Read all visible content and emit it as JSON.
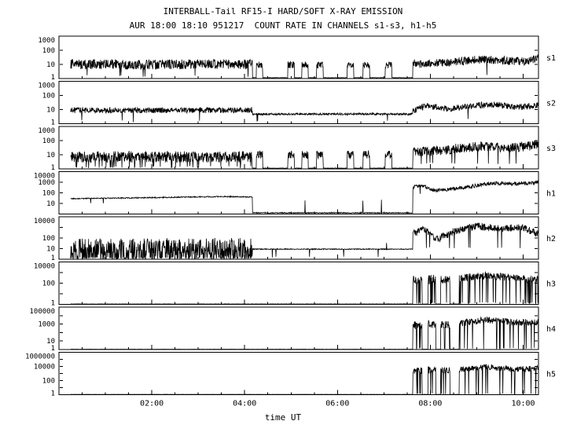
{
  "title": "INTERBALL-Tail RF15-I HARD/SOFT X-RAY EMISSION",
  "subtitle": "AUR 18:00 18:10 951217  COUNT RATE IN CHANNELS s1-s3, h1-h5",
  "xlabel": "time UT",
  "colors": {
    "trace": "#000000",
    "background": "#ffffff"
  },
  "chart_data": {
    "type": "line",
    "x_unit": "mm:ss after 18:00 UT on 951217",
    "xlim": [
      0,
      10.33
    ],
    "noise_seed": 1234,
    "grid": false,
    "xticks": [
      {
        "t": 2,
        "label": "02:00"
      },
      {
        "t": 4,
        "label": "04:00"
      },
      {
        "t": 6,
        "label": "06:00"
      },
      {
        "t": 8,
        "label": "08:00"
      },
      {
        "t": 10,
        "label": "10:00"
      }
    ],
    "panels": [
      {
        "label": "s1",
        "ymax_exp": 3,
        "yticks": [
          {
            "exp": 3,
            "label": "1000"
          },
          {
            "exp": 2,
            "label": "100"
          },
          {
            "exp": 1,
            "label": "10"
          },
          {
            "exp": 0,
            "label": "1"
          }
        ],
        "segments": [
          {
            "t0": 0.25,
            "t1": 4.17,
            "mode": "noise",
            "level": 1.0,
            "amp": 0.35,
            "down_p": 0.02,
            "down_to": 0.1
          },
          {
            "t0": 4.17,
            "t1": 7.62,
            "mode": "bursts",
            "base": 0.06,
            "level": 0.95,
            "amp": 0.25,
            "burst_w": 0.07,
            "bursts": [
              4.32,
              5.0,
              5.3,
              5.62,
              6.28,
              6.62,
              7.1
            ]
          },
          {
            "t0": 7.62,
            "t1": 10.33,
            "mode": "noise",
            "levels": [
              [
                7.62,
                1.05
              ],
              [
                8.3,
                1.1
              ],
              [
                9.0,
                1.35
              ],
              [
                9.5,
                1.3
              ],
              [
                10.0,
                1.2
              ],
              [
                10.33,
                1.45
              ]
            ],
            "amp": 0.3,
            "down_p": 0.01,
            "down_to": 0.2
          }
        ]
      },
      {
        "label": "s2",
        "ymax_exp": 3,
        "yticks": [
          {
            "exp": 3,
            "label": "1000"
          },
          {
            "exp": 2,
            "label": "100"
          },
          {
            "exp": 1,
            "label": "10"
          },
          {
            "exp": 0,
            "label": "1"
          }
        ],
        "segments": [
          {
            "t0": 0.25,
            "t1": 4.17,
            "mode": "noise",
            "level": 0.95,
            "amp": 0.2,
            "down_p": 0.008,
            "down_to": 0.1
          },
          {
            "t0": 4.17,
            "t1": 7.62,
            "mode": "noise",
            "level": 0.68,
            "amp": 0.07,
            "down_p": 0.004,
            "down_to": 0.1
          },
          {
            "t0": 7.62,
            "t1": 10.33,
            "mode": "noise",
            "levels": [
              [
                7.62,
                0.9
              ],
              [
                7.9,
                1.25
              ],
              [
                8.4,
                1.05
              ],
              [
                9.0,
                1.3
              ],
              [
                9.4,
                1.35
              ],
              [
                9.9,
                1.15
              ],
              [
                10.33,
                1.35
              ]
            ],
            "amp": 0.22,
            "down_p": 0.006,
            "down_to": 0.3
          }
        ]
      },
      {
        "label": "s3",
        "ymax_exp": 3,
        "yticks": [
          {
            "exp": 3,
            "label": "1000"
          },
          {
            "exp": 2,
            "label": "100"
          },
          {
            "exp": 1,
            "label": "10"
          },
          {
            "exp": 0,
            "label": "1"
          }
        ],
        "segments": [
          {
            "t0": 0.25,
            "t1": 4.17,
            "mode": "noise",
            "level": 0.85,
            "amp": 0.4,
            "down_p": 0.06,
            "down_to": 0.05
          },
          {
            "t0": 4.17,
            "t1": 7.62,
            "mode": "bursts",
            "base": 0.05,
            "level": 1.0,
            "amp": 0.3,
            "burst_w": 0.07,
            "bursts": [
              4.32,
              5.0,
              5.3,
              5.62,
              6.28,
              6.62,
              7.1
            ]
          },
          {
            "t0": 7.62,
            "t1": 10.33,
            "mode": "noise",
            "levels": [
              [
                7.62,
                1.15
              ],
              [
                8.3,
                1.35
              ],
              [
                9.1,
                1.6
              ],
              [
                9.7,
                1.45
              ],
              [
                10.33,
                1.7
              ]
            ],
            "amp": 0.35,
            "down_p": 0.02,
            "down_to": 0.3
          }
        ]
      },
      {
        "label": "h1",
        "ymax_exp": 4,
        "yticks": [
          {
            "exp": 4,
            "label": "10000"
          },
          {
            "exp": 3,
            "label": "1000"
          },
          {
            "exp": 2,
            "label": "100"
          },
          {
            "exp": 1,
            "label": "10"
          }
        ],
        "segments": [
          {
            "t0": 0.25,
            "t1": 4.17,
            "mode": "noise",
            "levels": [
              [
                0.25,
                1.45
              ],
              [
                2.0,
                1.55
              ],
              [
                3.5,
                1.65
              ],
              [
                4.17,
                1.6
              ]
            ],
            "amp": 0.05,
            "down_p": 0.003,
            "down_to": 0.9
          },
          {
            "t0": 4.17,
            "t1": 7.62,
            "mode": "noise",
            "level": 0.12,
            "amp": 0.04,
            "up_p": 0.012,
            "up_to": 1.35
          },
          {
            "t0": 7.62,
            "t1": 10.33,
            "mode": "noise",
            "levels": [
              [
                7.62,
                2.5
              ],
              [
                7.8,
                2.75
              ],
              [
                8.1,
                2.2
              ],
              [
                8.45,
                2.35
              ],
              [
                8.8,
                2.55
              ],
              [
                9.3,
                2.9
              ],
              [
                9.9,
                2.85
              ],
              [
                10.33,
                3.0
              ]
            ],
            "amp": 0.18,
            "down_p": 0.01,
            "down_to": 1.8
          }
        ]
      },
      {
        "label": "h2",
        "ymax_exp": 4,
        "yticks": [
          {
            "exp": 4,
            "label": "10000"
          },
          {
            "exp": 2,
            "label": "100"
          },
          {
            "exp": 1,
            "label": "10"
          },
          {
            "exp": 0,
            "label": "1"
          }
        ],
        "segments": [
          {
            "t0": 0.25,
            "t1": 4.17,
            "mode": "noise",
            "level": 1.1,
            "amp": 0.9,
            "down_p": 0.25,
            "down_to": 0.02
          },
          {
            "t0": 4.17,
            "t1": 7.62,
            "mode": "noise",
            "level": 0.95,
            "amp": 0.04,
            "down_p": 0.01,
            "down_to": 0.1,
            "up_p": 0.004,
            "up_to": 1.6
          },
          {
            "t0": 7.62,
            "t1": 10.33,
            "mode": "noise",
            "levels": [
              [
                7.62,
                2.4
              ],
              [
                7.85,
                2.9
              ],
              [
                8.15,
                1.9
              ],
              [
                8.5,
                2.6
              ],
              [
                9.0,
                3.1
              ],
              [
                9.5,
                2.9
              ],
              [
                10.0,
                3.0
              ],
              [
                10.33,
                2.3
              ]
            ],
            "amp": 0.35,
            "down_p": 0.03,
            "down_to": 1.0
          }
        ]
      },
      {
        "label": "h3",
        "ymax_exp": 4,
        "yticks": [
          {
            "exp": 4,
            "label": "10000"
          },
          {
            "exp": 2,
            "label": "100"
          },
          {
            "exp": 0,
            "label": "1"
          }
        ],
        "segments": [
          {
            "t0": 0.25,
            "t1": 7.62,
            "mode": "flat",
            "level": 0.03
          },
          {
            "t0": 7.62,
            "t1": 7.82,
            "mode": "noise",
            "level": 2.3,
            "amp": 0.45,
            "down_p": 0.12,
            "down_to": 0.05
          },
          {
            "t0": 7.82,
            "t1": 7.95,
            "mode": "flat",
            "level": 0.03
          },
          {
            "t0": 7.95,
            "t1": 8.12,
            "mode": "noise",
            "level": 2.35,
            "amp": 0.45,
            "down_p": 0.12,
            "down_to": 0.05
          },
          {
            "t0": 8.12,
            "t1": 8.22,
            "mode": "flat",
            "level": 0.03
          },
          {
            "t0": 8.22,
            "t1": 8.42,
            "mode": "noise",
            "level": 2.3,
            "amp": 0.4,
            "down_p": 0.1,
            "down_to": 0.05
          },
          {
            "t0": 8.42,
            "t1": 8.62,
            "mode": "flat",
            "level": 0.03
          },
          {
            "t0": 8.62,
            "t1": 10.33,
            "mode": "noise",
            "levels": [
              [
                8.62,
                2.45
              ],
              [
                9.2,
                2.75
              ],
              [
                9.8,
                2.5
              ],
              [
                10.05,
                2.4
              ],
              [
                10.33,
                2.5
              ]
            ],
            "amp": 0.35,
            "down_p": 0.09,
            "down_to": 0.05
          }
        ]
      },
      {
        "label": "h4",
        "ymax_exp": 5,
        "yticks": [
          {
            "exp": 5,
            "label": "100000"
          },
          {
            "exp": 3,
            "label": "1000"
          },
          {
            "exp": 1,
            "label": "10"
          },
          {
            "exp": 0,
            "label": "1"
          }
        ],
        "segments": [
          {
            "t0": 0.25,
            "t1": 7.62,
            "mode": "flat",
            "level": 0.03
          },
          {
            "t0": 7.62,
            "t1": 7.82,
            "mode": "noise",
            "level": 2.9,
            "amp": 0.5,
            "down_p": 0.12,
            "down_to": 0.05
          },
          {
            "t0": 7.82,
            "t1": 7.95,
            "mode": "flat",
            "level": 0.03
          },
          {
            "t0": 7.95,
            "t1": 8.12,
            "mode": "noise",
            "level": 3.0,
            "amp": 0.5,
            "down_p": 0.12,
            "down_to": 0.05
          },
          {
            "t0": 8.12,
            "t1": 8.22,
            "mode": "flat",
            "level": 0.03
          },
          {
            "t0": 8.22,
            "t1": 8.42,
            "mode": "noise",
            "level": 2.95,
            "amp": 0.45,
            "down_p": 0.1,
            "down_to": 0.05
          },
          {
            "t0": 8.42,
            "t1": 8.62,
            "mode": "flat",
            "level": 0.03
          },
          {
            "t0": 8.62,
            "t1": 10.33,
            "mode": "noise",
            "levels": [
              [
                8.62,
                3.1
              ],
              [
                9.2,
                3.5
              ],
              [
                9.8,
                3.2
              ],
              [
                10.33,
                3.2
              ]
            ],
            "amp": 0.4,
            "down_p": 0.09,
            "down_to": 0.05
          }
        ]
      },
      {
        "label": "h5",
        "ymax_exp": 6,
        "yticks": [
          {
            "exp": 6,
            "label": "1000000"
          },
          {
            "exp": 4,
            "label": "10000"
          },
          {
            "exp": 2,
            "label": "100"
          },
          {
            "exp": 0,
            "label": "1"
          }
        ],
        "segments": [
          {
            "t0": 0.25,
            "t1": 7.62,
            "mode": "flat",
            "level": 0.04
          },
          {
            "t0": 7.62,
            "t1": 7.82,
            "mode": "noise",
            "level": 3.4,
            "amp": 0.5,
            "down_p": 0.12,
            "down_to": 0.05
          },
          {
            "t0": 7.82,
            "t1": 7.95,
            "mode": "flat",
            "level": 0.04
          },
          {
            "t0": 7.95,
            "t1": 8.12,
            "mode": "noise",
            "level": 3.5,
            "amp": 0.5,
            "down_p": 0.12,
            "down_to": 0.05
          },
          {
            "t0": 8.12,
            "t1": 8.22,
            "mode": "flat",
            "level": 0.04
          },
          {
            "t0": 8.22,
            "t1": 8.42,
            "mode": "noise",
            "level": 3.45,
            "amp": 0.45,
            "down_p": 0.1,
            "down_to": 0.05
          },
          {
            "t0": 8.42,
            "t1": 8.62,
            "mode": "flat",
            "level": 0.04
          },
          {
            "t0": 8.62,
            "t1": 10.33,
            "mode": "noise",
            "levels": [
              [
                8.62,
                3.6
              ],
              [
                9.2,
                3.9
              ],
              [
                9.8,
                3.6
              ],
              [
                10.33,
                3.7
              ]
            ],
            "amp": 0.4,
            "down_p": 0.08,
            "down_to": 0.05,
            "up_p": 0.003,
            "up_to": 5.4
          }
        ]
      }
    ]
  }
}
